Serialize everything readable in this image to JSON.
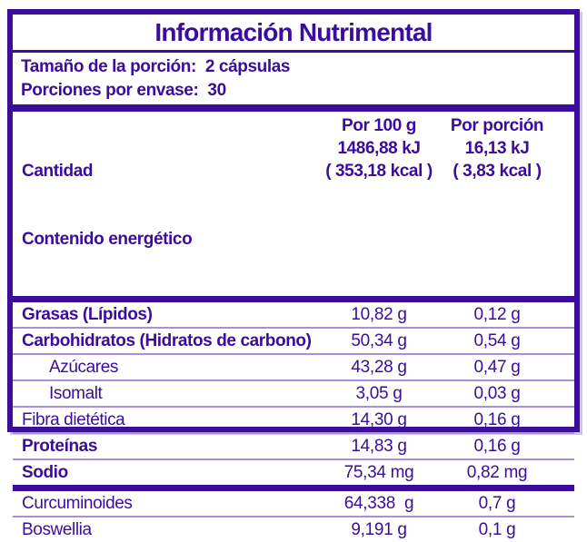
{
  "title": "Información Nutrimental",
  "serving": {
    "size_label": "Tamaño de la porción:",
    "size_value": "2 cápsulas",
    "per_container_label": "Porciones por envase:",
    "per_container_value": "30"
  },
  "energy": {
    "amount_label": "Cantidad",
    "energy_label": "Contenido energético",
    "per100_header": "Por 100 g",
    "per100_kj": "1486,88 kJ",
    "per100_kcal": "( 353,18 kcal )",
    "portion_header": "Por porción",
    "portion_kj": "16,13 kJ",
    "portion_kcal": "( 3,83 kcal )"
  },
  "rows": [
    {
      "label": "Grasas (Lípidos)",
      "per100": "10,82 g",
      "portion": "0,12 g",
      "bold": true,
      "indent": false
    },
    {
      "label": "Carbohidratos (Hidratos de carbono)",
      "per100": "50,34 g",
      "portion": "0,54 g",
      "bold": true,
      "indent": false
    },
    {
      "label": "Azúcares",
      "per100": "43,28 g",
      "portion": "0,47 g",
      "bold": false,
      "indent": true
    },
    {
      "label": "Isomalt",
      "per100": "3,05 g",
      "portion": "0,03 g",
      "bold": false,
      "indent": true
    },
    {
      "label": "Fibra dietética",
      "per100": "14,30 g",
      "portion": "0,16 g",
      "bold": false,
      "indent": false
    },
    {
      "label": "Proteínas",
      "per100": "14,83 g",
      "portion": "0,16 g",
      "bold": true,
      "indent": false
    },
    {
      "label": "Sodio",
      "per100": "75,34 mg",
      "portion": "0,82 mg",
      "bold": true,
      "indent": false
    }
  ],
  "extra_rows": [
    {
      "label": "Curcuminoides",
      "per100": "64,338  g",
      "portion": "0,7 g",
      "bold": false,
      "indent": false
    },
    {
      "label": "Boswellia",
      "per100": "9,191 g",
      "portion": "0,1 g",
      "bold": false,
      "indent": false
    }
  ],
  "colors": {
    "primary_purple": "#3a0d9c",
    "thin_divider": "#a98fd8",
    "background": "#ffffff"
  }
}
